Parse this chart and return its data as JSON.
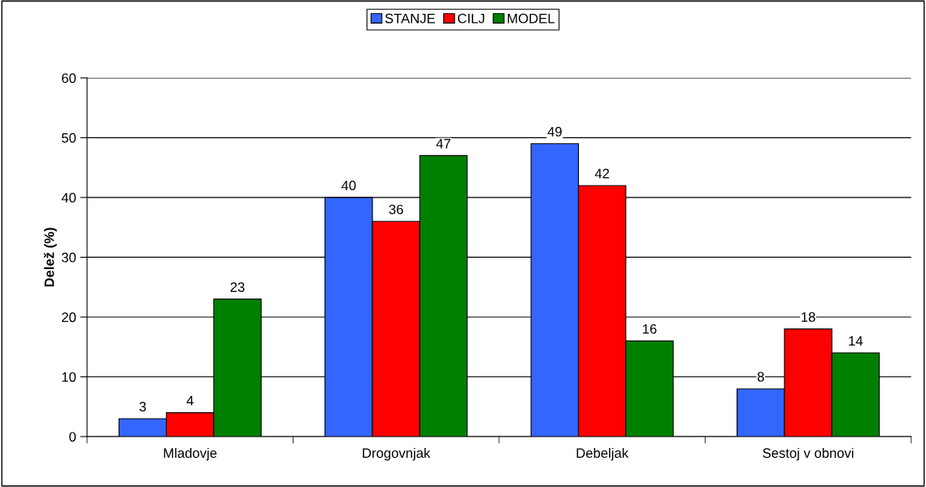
{
  "chart_data": {
    "type": "bar",
    "ylabel": "Delež (%)",
    "categories": [
      "Mladovje",
      "Drogovnjak",
      "Debeljak",
      "Sestoj v obnovi"
    ],
    "series": [
      {
        "name": "STANJE",
        "color": "#3366ff",
        "values": [
          3,
          40,
          49,
          8
        ]
      },
      {
        "name": "CILJ",
        "color": "#ff0000",
        "values": [
          4,
          36,
          42,
          18
        ]
      },
      {
        "name": "MODEL",
        "color": "#008000",
        "values": [
          23,
          47,
          16,
          14
        ]
      }
    ],
    "ylim": [
      0,
      60
    ],
    "yticks": [
      0,
      10,
      20,
      30,
      40,
      50,
      60
    ],
    "grid": "y",
    "legend": "top",
    "data_labels": true
  }
}
